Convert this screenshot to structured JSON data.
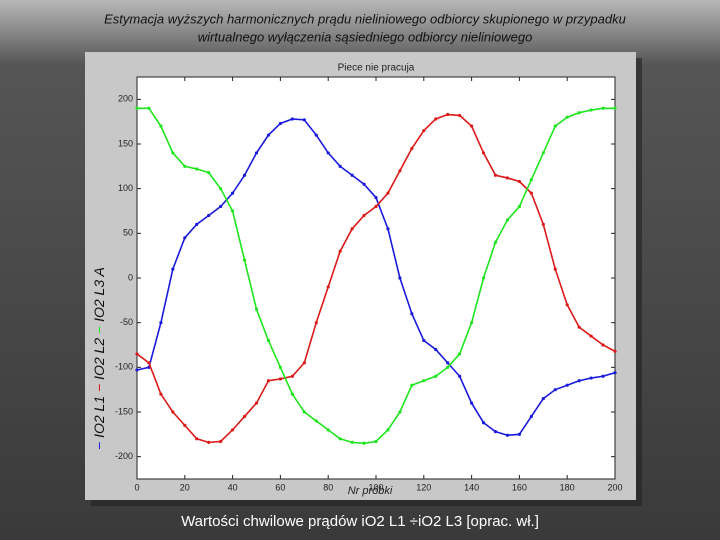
{
  "header": {
    "title_line1": "Estymacja wyższych harmonicznych prądu nieliniowego odbiorcy skupionego w przypadku",
    "title_line2": "wirtualnego wyłączenia sąsiedniego odbiorcy nieliniowego"
  },
  "caption": "Wartości chwilowe prądów iO2 L1 ÷iO2 L3 [oprac. wł.]",
  "chart_data": {
    "type": "line",
    "title": "Piece nie pracuja",
    "x_label": "Nr próbki",
    "y_label": "A",
    "x": [
      0,
      5,
      10,
      15,
      20,
      25,
      30,
      35,
      40,
      45,
      50,
      55,
      60,
      65,
      70,
      75,
      80,
      85,
      90,
      95,
      100,
      105,
      110,
      115,
      120,
      125,
      130,
      135,
      140,
      145,
      150,
      155,
      160,
      165,
      170,
      175,
      180,
      185,
      190,
      195,
      200
    ],
    "series": [
      {
        "name": "IO2 L1",
        "color": "#1a1adc",
        "values": [
          -103,
          -100,
          -50,
          10,
          45,
          60,
          70,
          80,
          95,
          115,
          140,
          160,
          173,
          178,
          177,
          160,
          140,
          125,
          115,
          105,
          90,
          55,
          0,
          -40,
          -70,
          -80,
          -95,
          -110,
          -140,
          -162,
          -172,
          -176,
          -175,
          -155,
          -135,
          -125,
          -120,
          -115,
          -112,
          -110,
          -106
        ]
      },
      {
        "name": "IO2 L2",
        "color": "#dc1a1a",
        "values": [
          -85,
          -95,
          -130,
          -150,
          -165,
          -180,
          -184,
          -183,
          -170,
          -155,
          -140,
          -115,
          -113,
          -110,
          -95,
          -50,
          -10,
          30,
          55,
          70,
          80,
          95,
          120,
          145,
          165,
          178,
          183,
          182,
          170,
          140,
          115,
          112,
          108,
          95,
          60,
          10,
          -30,
          -55,
          -65,
          -75,
          -82
        ]
      },
      {
        "name": "IO2 L3",
        "color": "#1ee61e",
        "values": [
          190,
          190,
          170,
          140,
          125,
          122,
          118,
          100,
          75,
          20,
          -35,
          -70,
          -100,
          -130,
          -150,
          -160,
          -170,
          -180,
          -184,
          -185,
          -183,
          -170,
          -150,
          -120,
          -115,
          -110,
          -100,
          -85,
          -50,
          0,
          40,
          65,
          80,
          110,
          140,
          170,
          180,
          185,
          188,
          190,
          190
        ]
      }
    ],
    "xlim": [
      0,
      200
    ],
    "xticks": [
      0,
      20,
      40,
      60,
      80,
      100,
      120,
      140,
      160,
      180,
      200
    ],
    "ylim": [
      -225,
      225
    ],
    "yticks": [
      -200,
      -150,
      -100,
      -50,
      0,
      50,
      100,
      150,
      200
    ],
    "grid": false
  }
}
